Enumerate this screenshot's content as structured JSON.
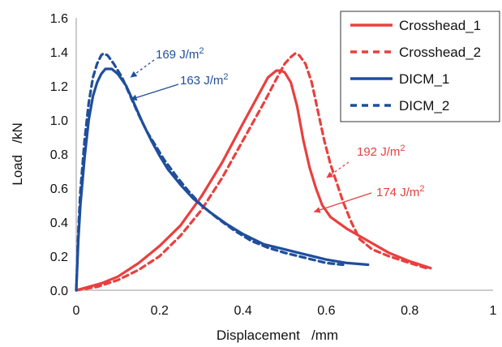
{
  "chart_data": {
    "type": "line",
    "title": "",
    "xlabel": "Displacement   /mm",
    "ylabel": "Load   /kN",
    "xlim": [
      0,
      1
    ],
    "ylim": [
      0,
      1.6
    ],
    "x_ticks": [
      "0",
      "0.2",
      "0.4",
      "0.6",
      "0.8",
      "1"
    ],
    "y_ticks": [
      "0.0",
      "0.2",
      "0.4",
      "0.6",
      "0.8",
      "1.0",
      "1.2",
      "1.4",
      "1.6"
    ],
    "grid": false,
    "legend_position": "top-right",
    "colors": {
      "crosshead": "#e8403f",
      "dicm": "#1f4e9c"
    },
    "series": [
      {
        "name": "Crosshead_1",
        "style": "solid",
        "color": "#e8403f",
        "points": [
          [
            0.0,
            0.0
          ],
          [
            0.03,
            0.02
          ],
          [
            0.06,
            0.04
          ],
          [
            0.1,
            0.08
          ],
          [
            0.15,
            0.16
          ],
          [
            0.2,
            0.26
          ],
          [
            0.25,
            0.38
          ],
          [
            0.3,
            0.55
          ],
          [
            0.35,
            0.75
          ],
          [
            0.4,
            0.98
          ],
          [
            0.44,
            1.16
          ],
          [
            0.46,
            1.25
          ],
          [
            0.48,
            1.29
          ],
          [
            0.49,
            1.29
          ],
          [
            0.5,
            1.28
          ],
          [
            0.515,
            1.22
          ],
          [
            0.53,
            1.08
          ],
          [
            0.545,
            0.88
          ],
          [
            0.56,
            0.72
          ],
          [
            0.575,
            0.6
          ],
          [
            0.59,
            0.5
          ],
          [
            0.61,
            0.43
          ],
          [
            0.65,
            0.36
          ],
          [
            0.7,
            0.29
          ],
          [
            0.75,
            0.22
          ],
          [
            0.8,
            0.17
          ],
          [
            0.85,
            0.13
          ]
        ]
      },
      {
        "name": "Crosshead_2",
        "style": "dashed",
        "color": "#e8403f",
        "points": [
          [
            0.0,
            0.0
          ],
          [
            0.05,
            0.02
          ],
          [
            0.1,
            0.06
          ],
          [
            0.15,
            0.12
          ],
          [
            0.2,
            0.2
          ],
          [
            0.25,
            0.32
          ],
          [
            0.3,
            0.47
          ],
          [
            0.35,
            0.66
          ],
          [
            0.4,
            0.88
          ],
          [
            0.45,
            1.1
          ],
          [
            0.48,
            1.24
          ],
          [
            0.5,
            1.33
          ],
          [
            0.515,
            1.37
          ],
          [
            0.525,
            1.39
          ],
          [
            0.535,
            1.38
          ],
          [
            0.55,
            1.33
          ],
          [
            0.565,
            1.22
          ],
          [
            0.58,
            1.05
          ],
          [
            0.595,
            0.88
          ],
          [
            0.61,
            0.74
          ],
          [
            0.625,
            0.63
          ],
          [
            0.64,
            0.52
          ],
          [
            0.66,
            0.4
          ],
          [
            0.68,
            0.3
          ],
          [
            0.71,
            0.24
          ],
          [
            0.75,
            0.2
          ],
          [
            0.8,
            0.16
          ],
          [
            0.84,
            0.13
          ]
        ]
      },
      {
        "name": "DICM_1",
        "style": "solid",
        "color": "#1f4e9c",
        "points": [
          [
            0.0,
            0.0
          ],
          [
            0.005,
            0.3
          ],
          [
            0.01,
            0.5
          ],
          [
            0.02,
            0.78
          ],
          [
            0.03,
            1.0
          ],
          [
            0.04,
            1.14
          ],
          [
            0.05,
            1.22
          ],
          [
            0.06,
            1.27
          ],
          [
            0.07,
            1.3
          ],
          [
            0.085,
            1.3
          ],
          [
            0.1,
            1.27
          ],
          [
            0.12,
            1.2
          ],
          [
            0.14,
            1.09
          ],
          [
            0.16,
            0.98
          ],
          [
            0.18,
            0.88
          ],
          [
            0.2,
            0.79
          ],
          [
            0.22,
            0.71
          ],
          [
            0.25,
            0.62
          ],
          [
            0.28,
            0.54
          ],
          [
            0.32,
            0.46
          ],
          [
            0.36,
            0.39
          ],
          [
            0.4,
            0.33
          ],
          [
            0.45,
            0.27
          ],
          [
            0.5,
            0.24
          ],
          [
            0.55,
            0.21
          ],
          [
            0.6,
            0.18
          ],
          [
            0.65,
            0.16
          ],
          [
            0.7,
            0.15
          ]
        ]
      },
      {
        "name": "DICM_2",
        "style": "dashed",
        "color": "#1f4e9c",
        "points": [
          [
            0.0,
            0.0
          ],
          [
            0.005,
            0.35
          ],
          [
            0.01,
            0.58
          ],
          [
            0.02,
            0.88
          ],
          [
            0.03,
            1.1
          ],
          [
            0.04,
            1.25
          ],
          [
            0.05,
            1.33
          ],
          [
            0.06,
            1.38
          ],
          [
            0.065,
            1.39
          ],
          [
            0.075,
            1.38
          ],
          [
            0.09,
            1.33
          ],
          [
            0.11,
            1.25
          ],
          [
            0.13,
            1.14
          ],
          [
            0.15,
            1.03
          ],
          [
            0.17,
            0.93
          ],
          [
            0.19,
            0.85
          ],
          [
            0.21,
            0.77
          ],
          [
            0.24,
            0.67
          ],
          [
            0.27,
            0.58
          ],
          [
            0.3,
            0.5
          ],
          [
            0.34,
            0.42
          ],
          [
            0.38,
            0.35
          ],
          [
            0.42,
            0.29
          ],
          [
            0.46,
            0.25
          ],
          [
            0.5,
            0.22
          ],
          [
            0.55,
            0.19
          ],
          [
            0.6,
            0.16
          ],
          [
            0.64,
            0.15
          ]
        ]
      }
    ],
    "annotations": [
      {
        "text": "169 J/m",
        "sup": "2",
        "color": "#1f4e9c",
        "target": [
          0.13,
          1.25
        ],
        "style": "dashed-arrow"
      },
      {
        "text": "163 J/m",
        "sup": "2",
        "color": "#1f4e9c",
        "target": [
          0.13,
          1.12
        ],
        "style": "solid-arrow"
      },
      {
        "text": "192 J/m",
        "sup": "2",
        "color": "#e8403f",
        "target": [
          0.6,
          0.66
        ],
        "style": "dashed-arrow"
      },
      {
        "text": "174 J/m",
        "sup": "2",
        "color": "#e8403f",
        "target": [
          0.57,
          0.46
        ],
        "style": "solid-arrow"
      }
    ]
  }
}
